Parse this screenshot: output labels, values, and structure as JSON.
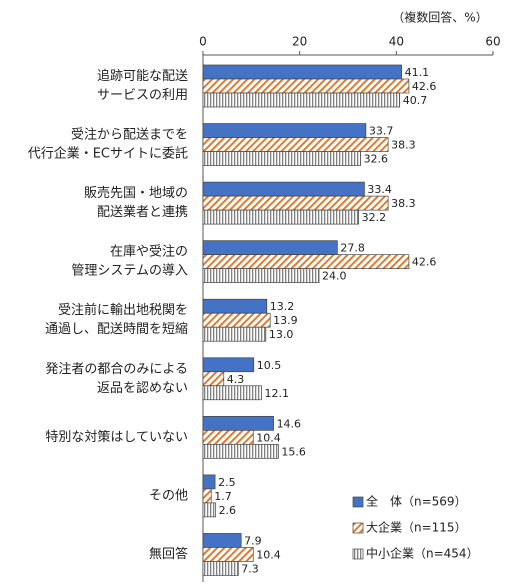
{
  "chart_data": {
    "type": "hbar",
    "unit_note": "（複数回答、%）",
    "categories": [
      [
        "追跡可能な配送",
        "サービスの利用"
      ],
      [
        "受注から配送までを",
        "代行企業・ECサイトに委託"
      ],
      [
        "販売先国・地域の",
        "配送業者と連携"
      ],
      [
        "在庫や受注の",
        "管理システムの導入"
      ],
      [
        "受注前に輸出地税関を",
        "通過し、配送時間を短縮"
      ],
      [
        "発注者の都合のみによる",
        "返品を認めない"
      ],
      [
        "特別な対策はしていない"
      ],
      [
        "その他"
      ],
      [
        "無回答"
      ]
    ],
    "series": [
      {
        "name": "全　体（n=569）",
        "color": "#4472c4",
        "values": [
          41.1,
          33.7,
          33.4,
          27.8,
          13.2,
          10.5,
          14.6,
          2.5,
          7.9
        ],
        "value_labels": [
          "41.1",
          "33.7",
          "33.4",
          "27.8",
          "13.2",
          "10.5",
          "14.6",
          "2.5",
          "7.9"
        ]
      },
      {
        "name": "大企業（n=115）",
        "color": "#e07b30",
        "values": [
          42.6,
          38.3,
          38.3,
          42.6,
          13.9,
          4.3,
          10.4,
          1.7,
          10.4
        ],
        "value_labels": [
          "42.6",
          "38.3",
          "38.3",
          "42.6",
          "13.9",
          "4.3",
          "10.4",
          "1.7",
          "10.4"
        ]
      },
      {
        "name": "中小企業（n=454）",
        "color": "#808080",
        "values": [
          40.7,
          32.6,
          32.2,
          24.0,
          13.0,
          12.1,
          15.6,
          2.6,
          7.3
        ],
        "value_labels": [
          "40.7",
          "32.6",
          "32.2",
          "24.0",
          "13.0",
          "12.1",
          "15.6",
          "2.6",
          "7.3"
        ]
      }
    ],
    "xlim": [
      0,
      60
    ],
    "xticks": [
      0,
      20,
      40,
      60
    ]
  }
}
